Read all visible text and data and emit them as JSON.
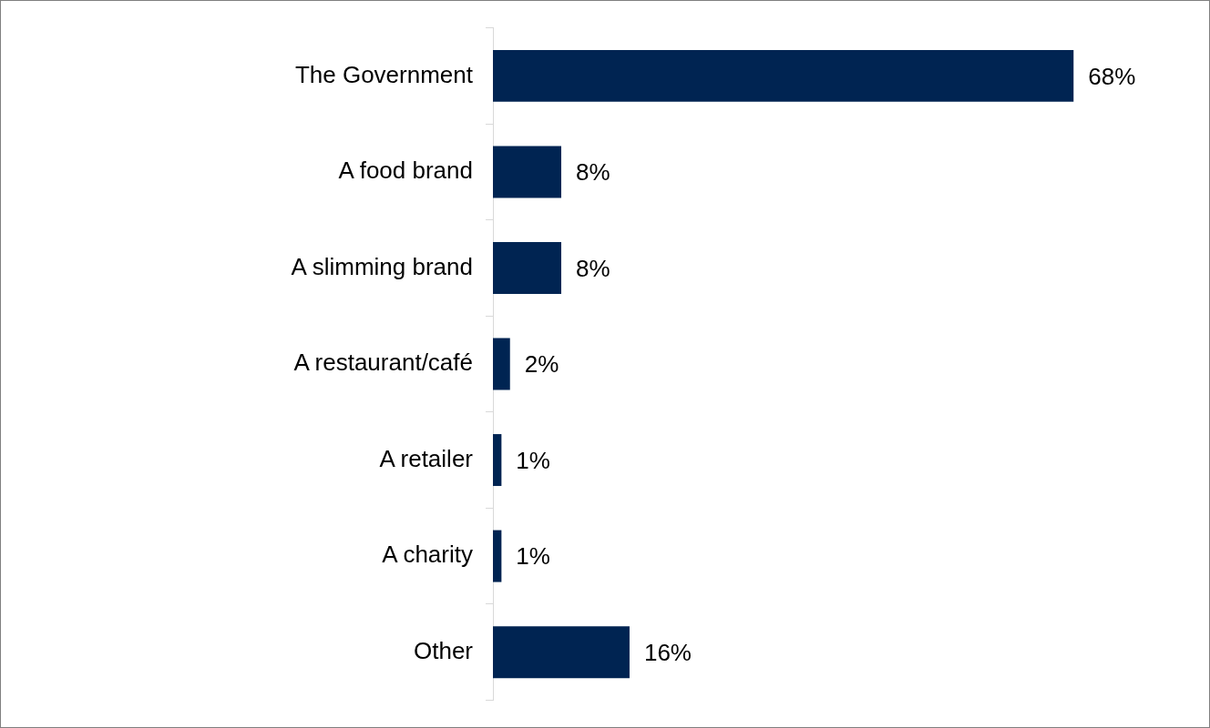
{
  "chart_data": {
    "type": "bar",
    "orientation": "horizontal",
    "categories": [
      "The Government",
      "A food brand",
      "A slimming brand",
      "A restaurant/café",
      "A retailer",
      "A charity",
      "Other"
    ],
    "values": [
      68,
      8,
      8,
      2,
      1,
      1,
      16
    ],
    "value_labels": [
      "68%",
      "8%",
      "8%",
      "2%",
      "1%",
      "1%",
      "16%"
    ],
    "color": "#002452",
    "tick_labels": "y",
    "legend": false
  }
}
